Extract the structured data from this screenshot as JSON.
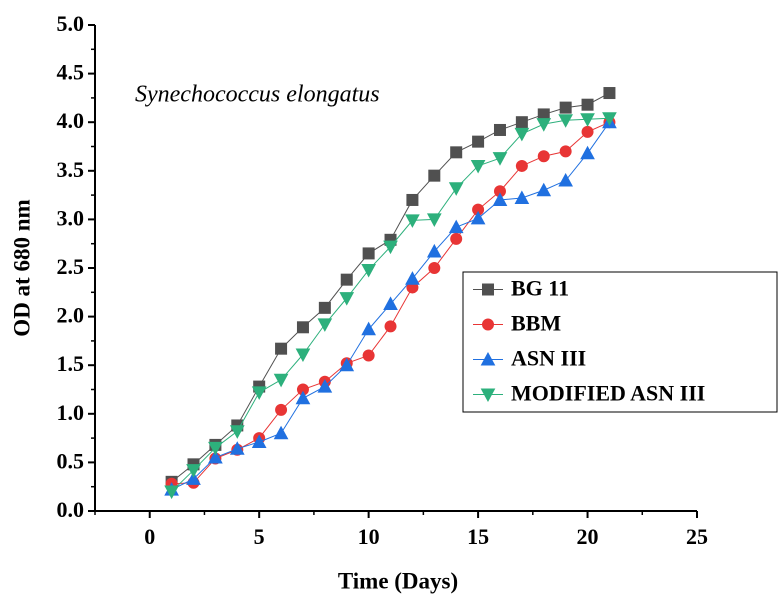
{
  "chart_data": {
    "type": "line",
    "annotation": "Synechococcus elongatus",
    "xlabel": "Time (Days)",
    "ylabel": "OD at 680 nm",
    "xlim": [
      -2.5,
      25
    ],
    "xticks": [
      0,
      5,
      10,
      15,
      20,
      25
    ],
    "ylim": [
      0,
      5
    ],
    "yticks": [
      {
        "value": 0,
        "label": "0.0"
      },
      {
        "value": 0.5,
        "label": "0.5"
      },
      {
        "value": 1,
        "label": "1.0"
      },
      {
        "value": 1.5,
        "label": "1.5"
      },
      {
        "value": 2,
        "label": "2.0"
      },
      {
        "value": 2.5,
        "label": "2.5"
      },
      {
        "value": 3,
        "label": "3.0"
      },
      {
        "value": 3.5,
        "label": "3.5"
      },
      {
        "value": 4,
        "label": "4.0"
      },
      {
        "value": 4.5,
        "label": "4.5"
      },
      {
        "value": 5,
        "label": "5.0"
      }
    ],
    "legend": "right",
    "x": [
      1,
      2,
      3,
      4,
      5,
      6,
      7,
      8,
      9,
      10,
      11,
      12,
      13,
      14,
      15,
      16,
      17,
      18,
      19,
      20,
      21
    ],
    "series": [
      {
        "name": "BG 11",
        "color": "#505050",
        "marker": "square",
        "values": [
          0.3,
          0.48,
          0.68,
          0.88,
          1.28,
          1.67,
          1.89,
          2.09,
          2.38,
          2.65,
          2.79,
          3.2,
          3.45,
          3.69,
          3.8,
          3.92,
          4.0,
          4.08,
          4.15,
          4.18,
          4.3
        ]
      },
      {
        "name": "BBM",
        "color": "#e83535",
        "marker": "circle",
        "values": [
          0.28,
          0.29,
          0.54,
          0.63,
          0.75,
          1.04,
          1.25,
          1.33,
          1.52,
          1.6,
          1.9,
          2.3,
          2.5,
          2.8,
          3.1,
          3.29,
          3.55,
          3.65,
          3.7,
          3.9,
          4.0
        ]
      },
      {
        "name": "ASN III",
        "color": "#2070e0",
        "marker": "triangle-up",
        "values": [
          0.22,
          0.33,
          0.55,
          0.64,
          0.71,
          0.8,
          1.16,
          1.28,
          1.5,
          1.87,
          2.13,
          2.39,
          2.67,
          2.92,
          3.01,
          3.2,
          3.22,
          3.3,
          3.4,
          3.68,
          4.0
        ]
      },
      {
        "name": "MODIFIED ASN III",
        "color": "#2db07c",
        "marker": "triangle-down",
        "values": [
          0.2,
          0.42,
          0.65,
          0.82,
          1.22,
          1.35,
          1.61,
          1.92,
          2.19,
          2.48,
          2.72,
          2.99,
          3.0,
          3.32,
          3.55,
          3.63,
          3.88,
          3.98,
          4.02,
          4.03,
          4.04
        ]
      }
    ]
  }
}
